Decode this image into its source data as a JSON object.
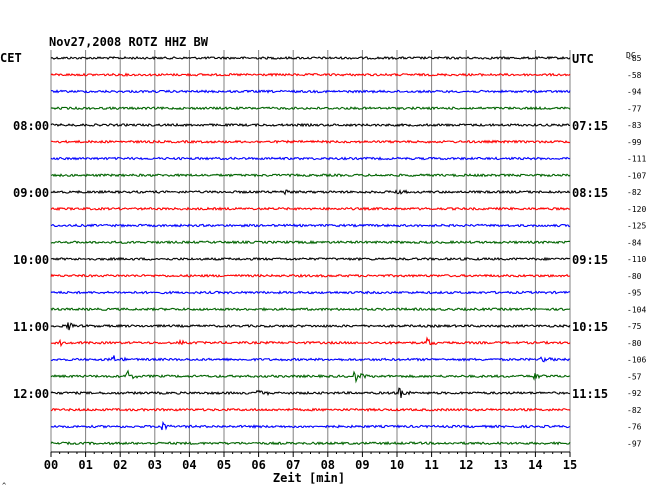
{
  "chart_data": {
    "type": "line",
    "title": "Nov27,2008   ROTZ HHZ BW",
    "left_header": "CET",
    "right_header": "UTC",
    "dc_header": "DC",
    "xlabel": "Zeit [min]",
    "x_ticks": [
      "00",
      "01",
      "02",
      "03",
      "04",
      "05",
      "06",
      "07",
      "08",
      "09",
      "10",
      "11",
      "12",
      "13",
      "14",
      "15"
    ],
    "xlim": [
      0,
      15
    ],
    "left_time_labels": [
      {
        "trace": 4,
        "text": "08:00"
      },
      {
        "trace": 8,
        "text": "09:00"
      },
      {
        "trace": 12,
        "text": "10:00"
      },
      {
        "trace": 16,
        "text": "11:00"
      },
      {
        "trace": 20,
        "text": "12:00"
      }
    ],
    "right_time_labels": [
      {
        "trace": 0,
        "text": "UTC"
      },
      {
        "trace": 4,
        "text": "07:15"
      },
      {
        "trace": 8,
        "text": "08:15"
      },
      {
        "trace": 12,
        "text": "09:15"
      },
      {
        "trace": 16,
        "text": "10:15"
      },
      {
        "trace": 20,
        "text": "11:15"
      }
    ],
    "trace_colors": [
      "#000000",
      "#ff0000",
      "#0000ff",
      "#006400"
    ],
    "dc_offsets": [
      -85,
      -58,
      -94,
      -77,
      -83,
      -99,
      -111,
      -107,
      -82,
      -120,
      -125,
      -84,
      -110,
      -80,
      -95,
      -104,
      -75,
      -80,
      -106,
      -57,
      -92,
      -82,
      -76,
      -97
    ],
    "events": [
      {
        "trace": 8,
        "minute": 6.8,
        "amplitude": 3
      },
      {
        "trace": 8,
        "minute": 10.0,
        "amplitude": 3
      },
      {
        "trace": 16,
        "minute": 0.5,
        "amplitude": 4
      },
      {
        "trace": 17,
        "minute": 0.3,
        "amplitude": 3
      },
      {
        "trace": 17,
        "minute": 3.7,
        "amplitude": 3
      },
      {
        "trace": 17,
        "minute": 10.9,
        "amplitude": 4
      },
      {
        "trace": 18,
        "minute": 1.8,
        "amplitude": 5
      },
      {
        "trace": 18,
        "minute": 14.2,
        "amplitude": 4
      },
      {
        "trace": 19,
        "minute": 2.2,
        "amplitude": 6
      },
      {
        "trace": 19,
        "minute": 8.8,
        "amplitude": 6
      },
      {
        "trace": 19,
        "minute": 14.0,
        "amplitude": 4
      },
      {
        "trace": 20,
        "minute": 6.0,
        "amplitude": 4
      },
      {
        "trace": 20,
        "minute": 10.1,
        "amplitude": 7
      },
      {
        "trace": 22,
        "minute": 3.2,
        "amplitude": 5
      }
    ]
  },
  "corner_mark": "^"
}
